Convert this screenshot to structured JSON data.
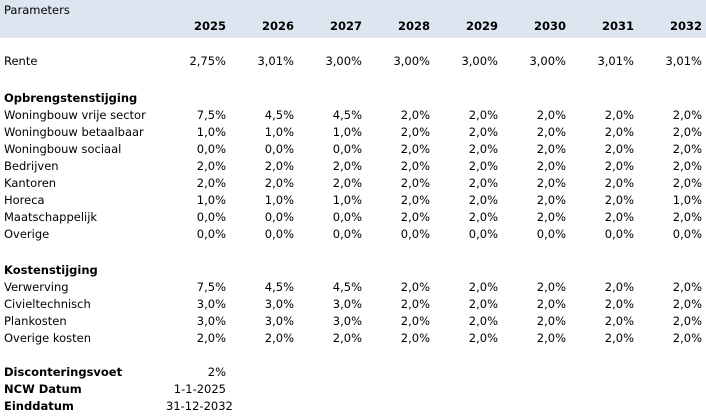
{
  "title": "Parameters",
  "years": [
    "2025",
    "2026",
    "2027",
    "2028",
    "2029",
    "2030",
    "2031",
    "2032"
  ],
  "rente": {
    "label": "Rente",
    "values": [
      "2,75%",
      "3,01%",
      "3,00%",
      "3,00%",
      "3,00%",
      "3,00%",
      "3,01%",
      "3,01%"
    ]
  },
  "opbrengsten": {
    "heading": "Opbrengstenstijging",
    "rows": [
      {
        "label": "Woningbouw vrije sector",
        "values": [
          "7,5%",
          "4,5%",
          "4,5%",
          "2,0%",
          "2,0%",
          "2,0%",
          "2,0%",
          "2,0%"
        ]
      },
      {
        "label": "Woningbouw betaalbaar",
        "values": [
          "1,0%",
          "1,0%",
          "1,0%",
          "2,0%",
          "2,0%",
          "2,0%",
          "2,0%",
          "2,0%"
        ]
      },
      {
        "label": "Woningbouw sociaal",
        "values": [
          "0,0%",
          "0,0%",
          "0,0%",
          "2,0%",
          "2,0%",
          "2,0%",
          "2,0%",
          "2,0%"
        ]
      },
      {
        "label": "Bedrijven",
        "values": [
          "2,0%",
          "2,0%",
          "2,0%",
          "2,0%",
          "2,0%",
          "2,0%",
          "2,0%",
          "2,0%"
        ]
      },
      {
        "label": "Kantoren",
        "values": [
          "2,0%",
          "2,0%",
          "2,0%",
          "2,0%",
          "2,0%",
          "2,0%",
          "2,0%",
          "2,0%"
        ]
      },
      {
        "label": "Horeca",
        "values": [
          "1,0%",
          "1,0%",
          "1,0%",
          "2,0%",
          "2,0%",
          "2,0%",
          "2,0%",
          "1,0%"
        ]
      },
      {
        "label": "Maatschappelijk",
        "values": [
          "0,0%",
          "0,0%",
          "0,0%",
          "2,0%",
          "2,0%",
          "2,0%",
          "2,0%",
          "2,0%"
        ]
      },
      {
        "label": "Overige",
        "values": [
          "0,0%",
          "0,0%",
          "0,0%",
          "0,0%",
          "0,0%",
          "0,0%",
          "0,0%",
          "0,0%"
        ]
      }
    ]
  },
  "kosten": {
    "heading": "Kostenstijging",
    "rows": [
      {
        "label": "Verwerving",
        "values": [
          "7,5%",
          "4,5%",
          "4,5%",
          "2,0%",
          "2,0%",
          "2,0%",
          "2,0%",
          "2,0%"
        ]
      },
      {
        "label": "Civieltechnisch",
        "values": [
          "3,0%",
          "3,0%",
          "3,0%",
          "2,0%",
          "2,0%",
          "2,0%",
          "2,0%",
          "2,0%"
        ]
      },
      {
        "label": "Plankosten",
        "values": [
          "3,0%",
          "3,0%",
          "3,0%",
          "2,0%",
          "2,0%",
          "2,0%",
          "2,0%",
          "2,0%"
        ]
      },
      {
        "label": "Overige kosten",
        "values": [
          "2,0%",
          "2,0%",
          "2,0%",
          "2,0%",
          "2,0%",
          "2,0%",
          "2,0%",
          "2,0%"
        ]
      }
    ]
  },
  "footer": [
    {
      "label": "Disconteringsvoet",
      "value": "2%"
    },
    {
      "label": "NCW Datum",
      "value": "1-1-2025"
    },
    {
      "label": "Einddatum",
      "value": "31-12-2032"
    }
  ]
}
